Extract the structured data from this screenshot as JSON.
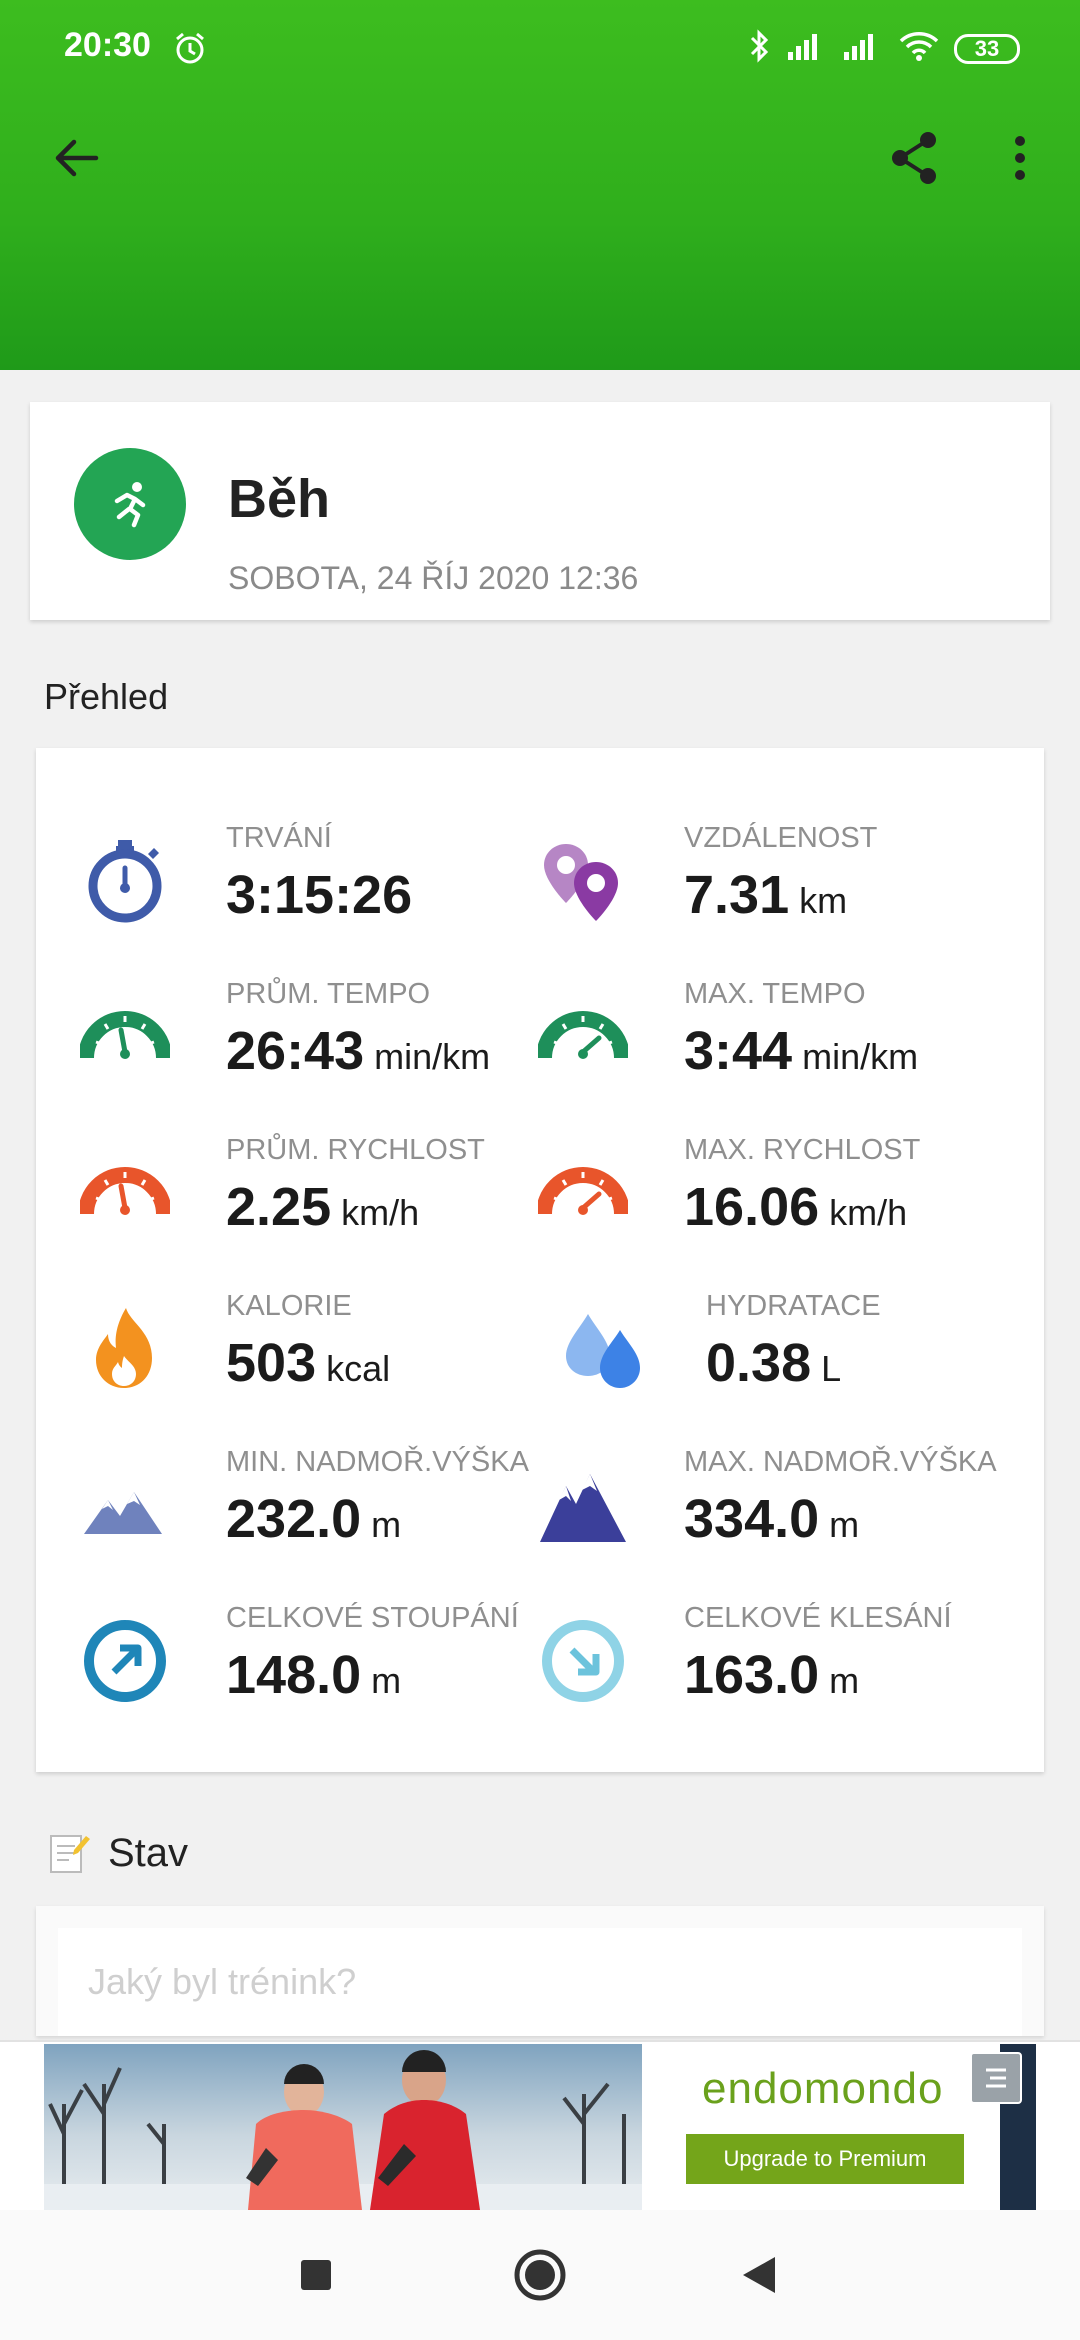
{
  "status_bar": {
    "time": "20:30",
    "battery": "33"
  },
  "activity": {
    "title": "Běh",
    "date": "SOBOTA, 24 ŘÍJ 2020 12:36"
  },
  "overview": {
    "title": "Přehled",
    "stats": [
      {
        "label": "TRVÁNÍ",
        "value": "3:15:26",
        "unit": "",
        "icon": "stopwatch-icon",
        "color": "#3f5ba9"
      },
      {
        "label": "VZDÁLENOST",
        "value": "7.31",
        "unit": "km",
        "icon": "location-pins-icon",
        "color": "#8a3aa3"
      },
      {
        "label": "PRŮM. TEMPO",
        "value": "26:43",
        "unit": "min/km",
        "icon": "avg-pace-gauge-icon",
        "color": "#1e8f5a"
      },
      {
        "label": "MAX. TEMPO",
        "value": "3:44",
        "unit": "min/km",
        "icon": "max-pace-gauge-icon",
        "color": "#1e8f5a"
      },
      {
        "label": "PRŮM. RYCHLOST",
        "value": "2.25",
        "unit": "km/h",
        "icon": "avg-speed-gauge-icon",
        "color": "#e8552b"
      },
      {
        "label": "MAX. RYCHLOST",
        "value": "16.06",
        "unit": "km/h",
        "icon": "max-speed-gauge-icon",
        "color": "#e8552b"
      },
      {
        "label": "KALORIE",
        "value": "503",
        "unit": "kcal",
        "icon": "flame-icon",
        "color": "#f3921f"
      },
      {
        "label": "HYDRATACE",
        "value": "0.38",
        "unit": "L",
        "icon": "water-drops-icon",
        "color": "#3d82e6"
      },
      {
        "label": "MIN. NADMOŘ.VÝŠKA",
        "value": "232.0",
        "unit": "m",
        "icon": "mountain-low-icon",
        "color": "#6f82bd"
      },
      {
        "label": "MAX. NADMOŘ.VÝŠKA",
        "value": "334.0",
        "unit": "m",
        "icon": "mountain-high-icon",
        "color": "#3b3f9a"
      },
      {
        "label": "CELKOVÉ STOUPÁNÍ",
        "value": "148.0",
        "unit": "m",
        "icon": "ascent-arrow-icon",
        "color": "#1f86b8"
      },
      {
        "label": "CELKOVÉ KLESÁNÍ",
        "value": "163.0",
        "unit": "m",
        "icon": "descent-arrow-icon",
        "color": "#8fd3e6"
      }
    ]
  },
  "stav": {
    "title": "Stav",
    "placeholder": "Jaký byl trénink?"
  },
  "ad": {
    "brand": "endomondo",
    "button": "Upgrade to Premium"
  }
}
